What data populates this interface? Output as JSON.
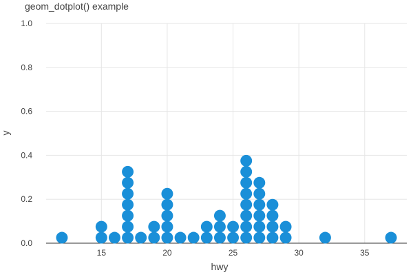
{
  "chart_data": {
    "type": "scatter",
    "subtype": "dotplot",
    "title": "geom_dotplot() example",
    "xlabel": "hwy",
    "ylabel": "y",
    "xlim": [
      10.8,
      38.2
    ],
    "ylim": [
      0,
      1.0
    ],
    "x_ticks": [
      15,
      20,
      25,
      30,
      35
    ],
    "x_tick_labels": [
      "15",
      "20",
      "25",
      "30",
      "35"
    ],
    "y_ticks": [
      0.0,
      0.2,
      0.4,
      0.6,
      0.8,
      1.0
    ],
    "y_tick_labels": [
      "0.0",
      "0.2",
      "0.4",
      "0.6",
      "0.8",
      "1.0"
    ],
    "grid": true,
    "stack_ratio": 0.05,
    "dot_color": "#1a8fd8",
    "grid_color": "#e5e5e5",
    "axis_color": "#333333",
    "text_color": "#444444",
    "stacks": [
      {
        "x": 12,
        "count": 1
      },
      {
        "x": 15,
        "count": 2
      },
      {
        "x": 16,
        "count": 1
      },
      {
        "x": 17,
        "count": 7
      },
      {
        "x": 18,
        "count": 1
      },
      {
        "x": 19,
        "count": 2
      },
      {
        "x": 20,
        "count": 5
      },
      {
        "x": 21,
        "count": 1
      },
      {
        "x": 22,
        "count": 1
      },
      {
        "x": 23,
        "count": 2
      },
      {
        "x": 24,
        "count": 3
      },
      {
        "x": 25,
        "count": 2
      },
      {
        "x": 26,
        "count": 8
      },
      {
        "x": 27,
        "count": 6
      },
      {
        "x": 28,
        "count": 4
      },
      {
        "x": 29,
        "count": 2
      },
      {
        "x": 32,
        "count": 1
      },
      {
        "x": 37,
        "count": 1
      }
    ]
  }
}
